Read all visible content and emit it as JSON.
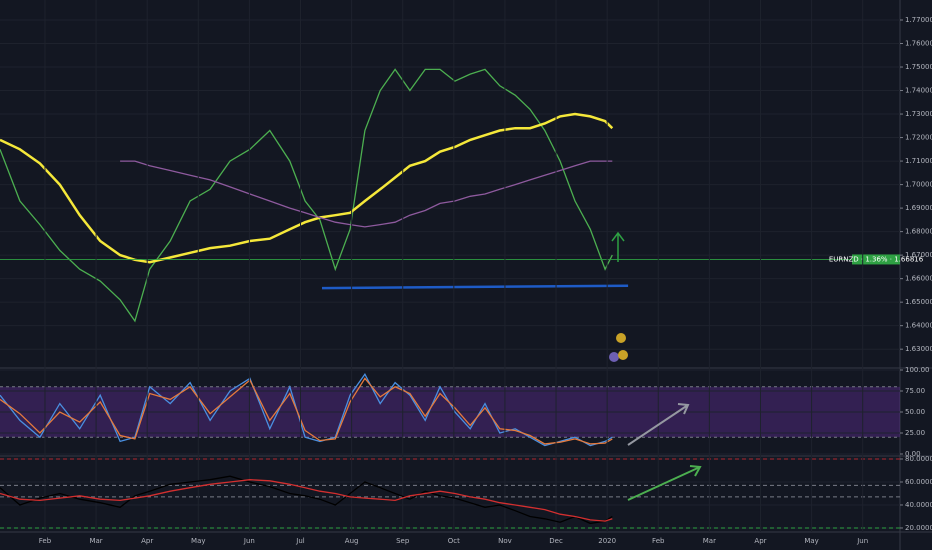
{
  "chart_data": [
    {
      "type": "line",
      "x": [
        0.12,
        0.51,
        0.9,
        1.29,
        1.68,
        2.08,
        2.47,
        2.76,
        3.05,
        3.45,
        3.84,
        4.23,
        4.62,
        5.01,
        5.4,
        5.79,
        6.09,
        6.38,
        6.68,
        6.97,
        7.26,
        7.56,
        7.85,
        8.14,
        8.44,
        8.73,
        9.02,
        9.32,
        9.61,
        9.9,
        10.2,
        10.49,
        10.78,
        11.08,
        11.37,
        11.67,
        11.96,
        12.1
      ],
      "xlim": [
        0.12,
        17.73
      ],
      "ylim": [
        1.622,
        1.7785
      ],
      "yticks": [
        {
          "value": 1.63,
          "label": "1.63000"
        },
        {
          "value": 1.64,
          "label": "1.64000"
        },
        {
          "value": 1.65,
          "label": "1.65000"
        },
        {
          "value": 1.66,
          "label": "1.66000"
        },
        {
          "value": 1.67,
          "label": "1.67000"
        },
        {
          "value": 1.68,
          "label": "1.68000"
        },
        {
          "value": 1.69,
          "label": "1.69000"
        },
        {
          "value": 1.7,
          "label": "1.70000"
        },
        {
          "value": 1.71,
          "label": "1.71000"
        },
        {
          "value": 1.72,
          "label": "1.72000"
        },
        {
          "value": 1.73,
          "label": "1.73000"
        },
        {
          "value": 1.74,
          "label": "1.74000"
        },
        {
          "value": 1.75,
          "label": "1.75000"
        },
        {
          "value": 1.76,
          "label": "1.76000"
        },
        {
          "value": 1.77,
          "label": "1.77000"
        }
      ],
      "series": [
        {
          "color": "#4caf50",
          "values": [
            1.715,
            1.693,
            1.683,
            1.672,
            1.664,
            1.659,
            1.651,
            1.642,
            1.664,
            1.676,
            1.693,
            1.698,
            1.71,
            1.715,
            1.723,
            1.71,
            1.693,
            1.685,
            1.664,
            1.681,
            1.723,
            1.74,
            1.749,
            1.74,
            1.749,
            1.749,
            1.744,
            1.747,
            1.749,
            1.742,
            1.738,
            1.732,
            1.723,
            1.71,
            1.693,
            1.681,
            1.664,
            1.67
          ]
        },
        {
          "color": "#f5e83a",
          "values": [
            1.719,
            1.715,
            1.709,
            1.7,
            1.687,
            1.676,
            1.67,
            1.668,
            1.667,
            1.669,
            1.671,
            1.673,
            1.674,
            1.676,
            1.677,
            1.681,
            1.684,
            1.686,
            1.687,
            1.688,
            1.693,
            1.698,
            1.703,
            1.708,
            1.71,
            1.714,
            1.716,
            1.719,
            1.721,
            1.723,
            1.724,
            1.724,
            1.726,
            1.729,
            1.73,
            1.729,
            1.727,
            1.724
          ]
        },
        {
          "color": "#8e5a9e",
          "values": [
            null,
            null,
            null,
            null,
            null,
            null,
            1.71,
            1.71,
            1.708,
            1.706,
            1.704,
            1.702,
            1.699,
            1.696,
            1.693,
            1.69,
            1.688,
            1.686,
            1.684,
            1.683,
            1.682,
            1.683,
            1.684,
            1.687,
            1.689,
            1.692,
            1.693,
            1.695,
            1.696,
            1.698,
            1.7,
            1.702,
            1.704,
            1.706,
            1.708,
            1.71,
            1.71,
            1.71
          ]
        },
        {
          "color": "#1e5bc6",
          "x": [
            6.42,
            12.41
          ],
          "values": [
            1.656,
            1.657
          ]
        }
      ],
      "price_line": {
        "value": 1.66816,
        "label": "EURNZD · 1.36% · 1.66816",
        "color": "#2ea043"
      }
    },
    {
      "type": "line",
      "x": [
        0.12,
        0.51,
        0.9,
        1.29,
        1.68,
        2.08,
        2.47,
        2.76,
        3.05,
        3.45,
        3.84,
        4.23,
        4.62,
        5.01,
        5.4,
        5.79,
        6.09,
        6.38,
        6.68,
        6.97,
        7.26,
        7.56,
        7.85,
        8.14,
        8.44,
        8.73,
        9.02,
        9.32,
        9.61,
        9.9,
        10.2,
        10.49,
        10.78,
        11.08,
        11.37,
        11.67,
        11.96,
        12.1
      ],
      "xlim": [
        0.12,
        17.73
      ],
      "ylim": [
        -2.4,
        102.4
      ],
      "yticks": [
        {
          "value": 0,
          "label": "0.00"
        },
        {
          "value": 25,
          "label": "25.00"
        },
        {
          "value": 50,
          "label": "50.00"
        },
        {
          "value": 75,
          "label": "75.00"
        },
        {
          "value": 100,
          "label": "100.00"
        }
      ],
      "band": [
        20,
        80
      ],
      "band_color": "#5b2d8e",
      "series": [
        {
          "color": "#4a8fe0",
          "values": [
            70,
            40,
            20,
            60,
            30,
            70,
            15,
            20,
            80,
            60,
            85,
            40,
            75,
            90,
            30,
            80,
            20,
            15,
            20,
            70,
            95,
            60,
            85,
            70,
            40,
            80,
            50,
            30,
            60,
            25,
            30,
            20,
            10,
            15,
            20,
            10,
            15,
            20
          ]
        },
        {
          "color": "#e57a3c",
          "values": [
            65,
            48,
            25,
            50,
            38,
            62,
            22,
            18,
            72,
            65,
            80,
            48,
            68,
            88,
            40,
            72,
            28,
            16,
            18,
            62,
            90,
            68,
            80,
            72,
            45,
            72,
            55,
            34,
            55,
            30,
            28,
            22,
            12,
            14,
            18,
            12,
            13,
            18
          ]
        }
      ]
    },
    {
      "type": "line",
      "x": [
        0.12,
        0.51,
        0.9,
        1.29,
        1.68,
        2.08,
        2.47,
        2.76,
        3.05,
        3.45,
        3.84,
        4.23,
        4.62,
        5.01,
        5.4,
        5.79,
        6.09,
        6.38,
        6.68,
        6.97,
        7.26,
        7.56,
        7.85,
        8.14,
        8.44,
        8.73,
        9.02,
        9.32,
        9.61,
        9.9,
        10.2,
        10.49,
        10.78,
        11.08,
        11.37,
        11.67,
        11.96,
        12.1
      ],
      "xlim": [
        0.12,
        17.73
      ],
      "ylim": [
        16.5,
        82.6
      ],
      "yticks": [
        {
          "value": 20,
          "label": "20.000000"
        },
        {
          "value": 40,
          "label": "40.000000"
        },
        {
          "value": 60,
          "label": "60.000000"
        },
        {
          "value": 80,
          "label": "80.000000"
        }
      ],
      "xticks": [
        {
          "value": 1,
          "label": "Feb"
        },
        {
          "value": 2,
          "label": "Mar"
        },
        {
          "value": 3,
          "label": "Apr"
        },
        {
          "value": 4,
          "label": "May"
        },
        {
          "value": 5,
          "label": "Jun"
        },
        {
          "value": 6,
          "label": "Jul"
        },
        {
          "value": 7,
          "label": "Aug"
        },
        {
          "value": 8,
          "label": "Sep"
        },
        {
          "value": 9,
          "label": "Oct"
        },
        {
          "value": 10,
          "label": "Nov"
        },
        {
          "value": 11,
          "label": "Dec"
        },
        {
          "value": 12,
          "label": "2020"
        },
        {
          "value": 13,
          "label": "Feb"
        },
        {
          "value": 14,
          "label": "Mar"
        },
        {
          "value": 15,
          "label": "Apr"
        },
        {
          "value": 16,
          "label": "May"
        },
        {
          "value": 17,
          "label": "Jun"
        }
      ],
      "levels": [
        {
          "value": 80,
          "color": "#b22833"
        },
        {
          "value": 57,
          "color": "#787b86"
        },
        {
          "value": 47,
          "color": "#787b86"
        },
        {
          "value": 20,
          "color": "#2ea043"
        }
      ],
      "series": [
        {
          "color": "#000000",
          "values": [
            55,
            40,
            46,
            50,
            45,
            42,
            38,
            48,
            52,
            58,
            60,
            62,
            65,
            60,
            56,
            50,
            48,
            45,
            40,
            50,
            60,
            55,
            50,
            45,
            52,
            48,
            46,
            42,
            38,
            40,
            35,
            30,
            28,
            25,
            30,
            24,
            26,
            30
          ]
        },
        {
          "color": "#d32f2f",
          "values": [
            50,
            45,
            44,
            46,
            48,
            45,
            44,
            46,
            48,
            52,
            55,
            58,
            60,
            62,
            61,
            58,
            55,
            52,
            50,
            47,
            46,
            45,
            44,
            48,
            50,
            52,
            50,
            47,
            45,
            42,
            40,
            38,
            36,
            32,
            30,
            27,
            26,
            28
          ]
        }
      ]
    }
  ]
}
